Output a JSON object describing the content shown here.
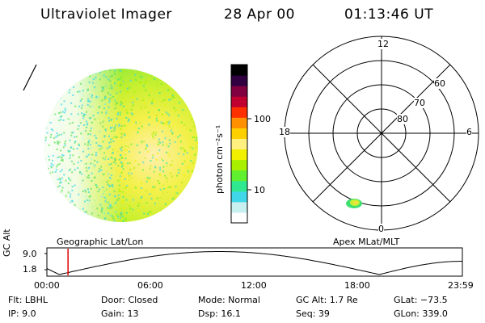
{
  "header": {
    "instrument": "Ultraviolet Imager",
    "date": "28 Apr 00",
    "time": "01:13:46 UT"
  },
  "colorbar": {
    "unit_label": "photon cm⁻²s⁻¹",
    "tick_100": "100",
    "tick_10": "10",
    "colors": [
      "#ffffff",
      "#c8f0f0",
      "#40d8e8",
      "#30e890",
      "#60f030",
      "#a8f000",
      "#f0f000",
      "#fff080",
      "#ffd000",
      "#ff9000",
      "#ff3000",
      "#c00030",
      "#800040",
      "#300040",
      "#000000"
    ]
  },
  "panels": {
    "left_label": "Geographic Lat/Lon",
    "right_label": "Apex MLat/MLT"
  },
  "polar": {
    "mlt": {
      "top": "12",
      "left": "18",
      "right": "6",
      "bottom": "0"
    },
    "lat": {
      "l60": "60",
      "l70": "70",
      "l80": "80"
    }
  },
  "timeline": {
    "ylabel": "GC Alt",
    "ytick_top": "9.0",
    "ytick_bottom": "1.8",
    "xticks": [
      "00:00",
      "06:00",
      "12:00",
      "18:00",
      "23:59"
    ],
    "current_time_fraction": 0.051
  },
  "info": {
    "col1": {
      "flt": "Flt: LBHL",
      "ip": "IP:  9.0"
    },
    "col2": {
      "door": "Door: Closed",
      "gain": "Gain: 13"
    },
    "col3": {
      "mode": "Mode: Normal",
      "dsp": "Dsp:   16.1"
    },
    "col4": {
      "gcalt": "GC Alt: 1.7 Re",
      "seq": "Seq: 39"
    },
    "col5": {
      "glat": "GLat: −73.5",
      "glon": "GLon: 339.0"
    }
  }
}
